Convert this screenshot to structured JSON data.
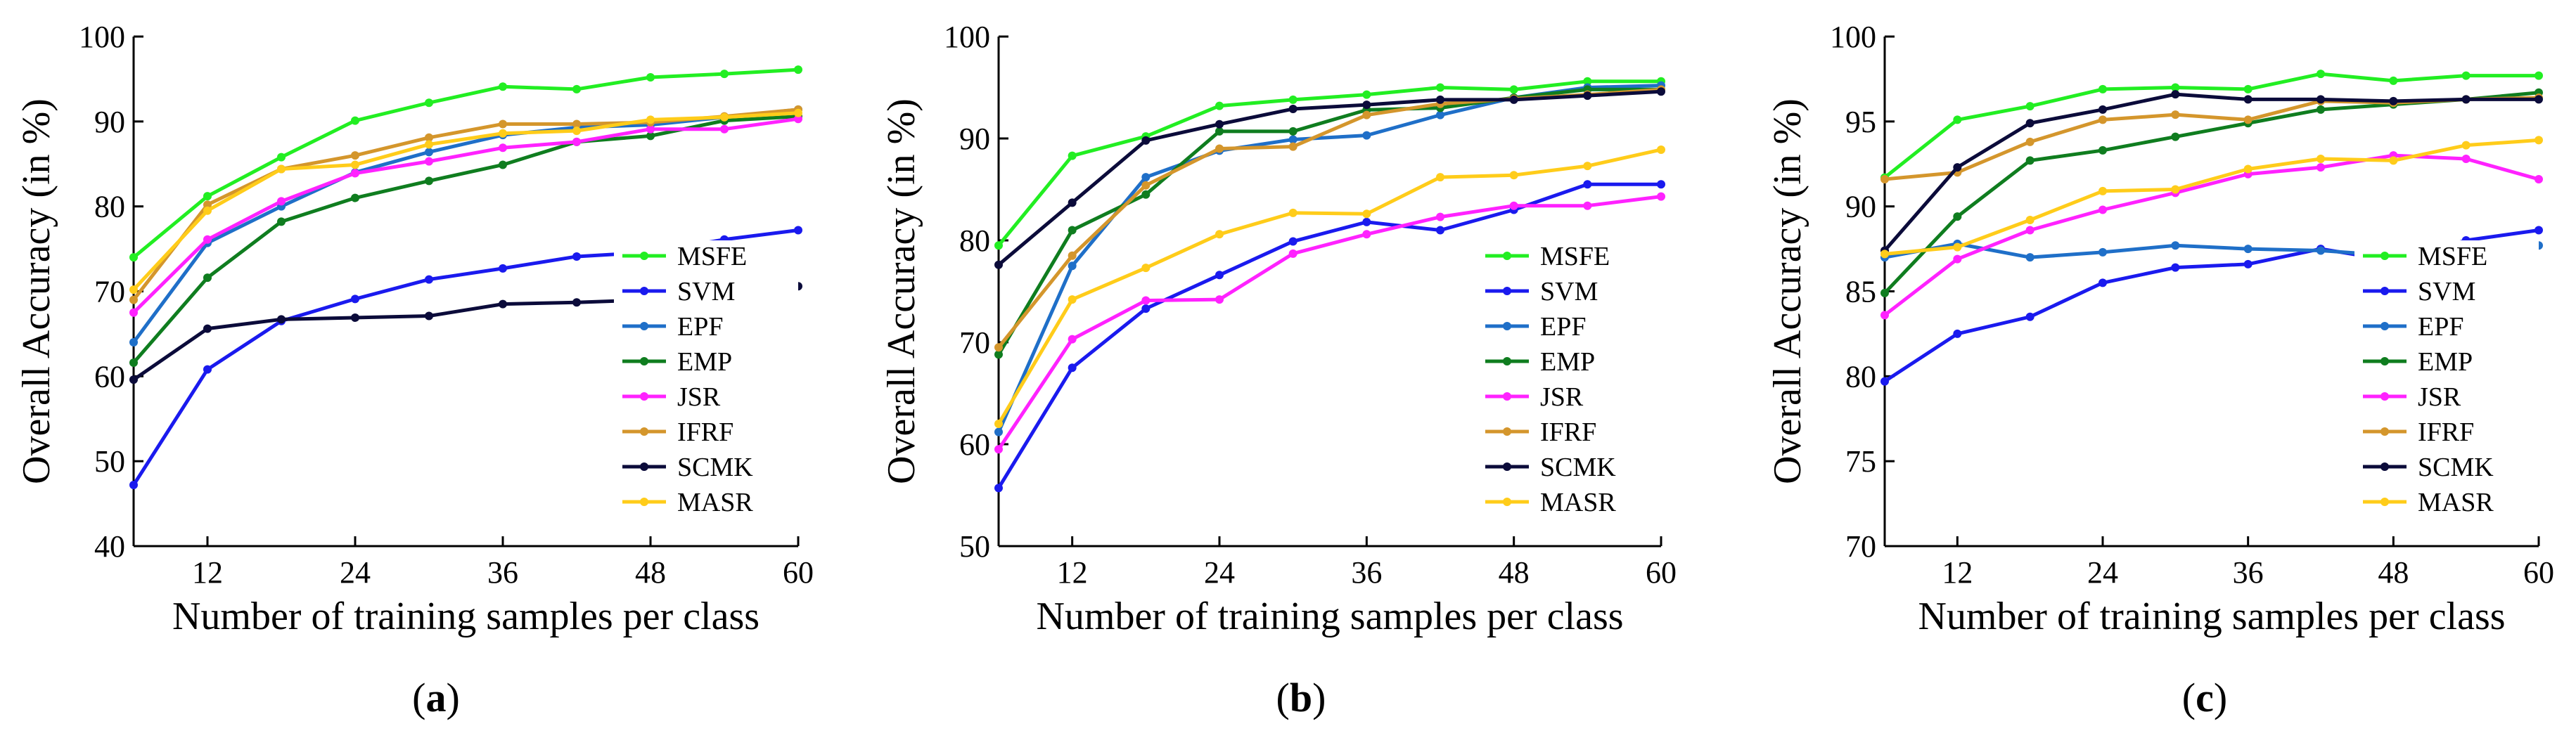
{
  "chart_data": [
    {
      "type": "line",
      "panel_label": "a",
      "xlabel": "Number of training samples per class",
      "ylabel": "Overall Accuracy (in %)",
      "xlim": [
        6,
        60
      ],
      "ylim": [
        40,
        100
      ],
      "xticks": [
        12,
        24,
        36,
        48,
        60
      ],
      "yticks": [
        40,
        50,
        60,
        70,
        80,
        90,
        100
      ],
      "grid": false,
      "legend_position": "lower-right",
      "x": [
        6,
        12,
        18,
        24,
        30,
        36,
        42,
        48,
        54,
        60
      ],
      "series": [
        {
          "name": "MSFE",
          "color": "#22ee22",
          "values": [
            74,
            81.2,
            85.8,
            90.1,
            92.2,
            94.1,
            93.8,
            95.2,
            95.6,
            96.1
          ]
        },
        {
          "name": "SVM",
          "color": "#1a1aee",
          "values": [
            47.2,
            60.8,
            66.5,
            69.1,
            71.4,
            72.7,
            74.1,
            74.6,
            76.1,
            77.2
          ]
        },
        {
          "name": "EPF",
          "color": "#1f6fc8",
          "values": [
            64,
            75.7,
            80,
            84,
            86.4,
            88.4,
            89.3,
            89.6,
            90.5,
            91.4
          ]
        },
        {
          "name": "EMP",
          "color": "#0f7d1f",
          "values": [
            61.6,
            71.6,
            78.2,
            81,
            83,
            84.9,
            87.6,
            88.3,
            90.1,
            90.6
          ]
        },
        {
          "name": "JSR",
          "color": "#ff22ff",
          "values": [
            67.5,
            76.1,
            80.6,
            83.9,
            85.3,
            86.9,
            87.6,
            89.1,
            89.1,
            90.3
          ]
        },
        {
          "name": "IFRF",
          "color": "#d4962c",
          "values": [
            69,
            80.2,
            84.4,
            86,
            88.1,
            89.7,
            89.7,
            89.9,
            90.6,
            91.4
          ]
        },
        {
          "name": "SCMK",
          "color": "#0b0b3a",
          "values": [
            59.6,
            65.6,
            66.7,
            66.9,
            67.1,
            68.5,
            68.7,
            69,
            69.9,
            70.6
          ]
        },
        {
          "name": "MASR",
          "color": "#ffcc1a",
          "values": [
            70.2,
            79.5,
            84.4,
            84.9,
            87.3,
            88.6,
            88.9,
            90.2,
            90.5,
            91
          ]
        }
      ]
    },
    {
      "type": "line",
      "panel_label": "b",
      "xlabel": "Number of training samples per class",
      "ylabel": "Overall Accuracy (in %)",
      "xlim": [
        6,
        60
      ],
      "ylim": [
        50,
        100
      ],
      "xticks": [
        12,
        24,
        36,
        48,
        60
      ],
      "yticks": [
        50,
        60,
        70,
        80,
        90,
        100
      ],
      "grid": false,
      "legend_position": "lower-right",
      "x": [
        6,
        12,
        18,
        24,
        30,
        36,
        42,
        48,
        54,
        60
      ],
      "series": [
        {
          "name": "MSFE",
          "color": "#22ee22",
          "values": [
            79.5,
            88.3,
            90.2,
            93.2,
            93.8,
            94.3,
            95,
            94.8,
            95.6,
            95.6
          ]
        },
        {
          "name": "SVM",
          "color": "#1a1aee",
          "values": [
            55.7,
            67.5,
            73.3,
            76.6,
            79.9,
            81.8,
            81,
            83,
            85.5,
            85.5
          ]
        },
        {
          "name": "EPF",
          "color": "#1f6fc8",
          "values": [
            61.2,
            77.5,
            86.2,
            88.8,
            89.9,
            90.3,
            92.3,
            94,
            95,
            95.2
          ]
        },
        {
          "name": "EMP",
          "color": "#0f7d1f",
          "values": [
            68.8,
            81,
            84.5,
            90.7,
            90.7,
            92.8,
            93,
            94,
            94.8,
            94.8
          ]
        },
        {
          "name": "JSR",
          "color": "#ff22ff",
          "values": [
            59.5,
            70.3,
            74.1,
            74.2,
            78.7,
            80.6,
            82.3,
            83.4,
            83.4,
            84.3
          ]
        },
        {
          "name": "IFRF",
          "color": "#d4962c",
          "values": [
            69.5,
            78.5,
            85.4,
            89,
            89.2,
            92.3,
            93.4,
            93.9,
            94.3,
            94.8
          ]
        },
        {
          "name": "SCMK",
          "color": "#0b0b3a",
          "values": [
            77.6,
            83.7,
            89.8,
            91.4,
            92.9,
            93.3,
            93.8,
            93.8,
            94.2,
            94.6
          ]
        },
        {
          "name": "MASR",
          "color": "#ffcc1a",
          "values": [
            62,
            74.2,
            77.3,
            80.6,
            82.7,
            82.6,
            86.2,
            86.4,
            87.3,
            88.9
          ]
        }
      ]
    },
    {
      "type": "line",
      "panel_label": "c",
      "xlabel": "Number of training samples per class",
      "ylabel": "Overall Accuracy (in %)",
      "xlim": [
        6,
        60
      ],
      "ylim": [
        70,
        100
      ],
      "xticks": [
        12,
        24,
        36,
        48,
        60
      ],
      "yticks": [
        70,
        75,
        80,
        85,
        90,
        95,
        100
      ],
      "grid": false,
      "legend_position": "lower-right",
      "x": [
        6,
        12,
        18,
        24,
        30,
        36,
        42,
        48,
        54,
        60
      ],
      "series": [
        {
          "name": "MSFE",
          "color": "#22ee22",
          "values": [
            91.7,
            95.1,
            95.9,
            96.9,
            97,
            96.9,
            97.8,
            97.4,
            97.7,
            97.7
          ]
        },
        {
          "name": "SVM",
          "color": "#1a1aee",
          "values": [
            79.7,
            82.5,
            83.5,
            85.5,
            86.4,
            86.6,
            87.5,
            86.8,
            88,
            88.6
          ]
        },
        {
          "name": "EPF",
          "color": "#1f6fc8",
          "values": [
            87,
            87.8,
            87,
            87.3,
            87.7,
            87.5,
            87.4,
            87.1,
            87.5,
            87.7
          ]
        },
        {
          "name": "EMP",
          "color": "#0f7d1f",
          "values": [
            84.9,
            89.4,
            92.7,
            93.3,
            94.1,
            94.9,
            95.7,
            96,
            96.3,
            96.7
          ]
        },
        {
          "name": "JSR",
          "color": "#ff22ff",
          "values": [
            83.6,
            86.9,
            88.6,
            89.8,
            90.8,
            91.9,
            92.3,
            93,
            92.8,
            91.6
          ]
        },
        {
          "name": "IFRF",
          "color": "#d4962c",
          "values": [
            91.6,
            92,
            93.8,
            95.1,
            95.4,
            95.1,
            96.2,
            96.1,
            96.3,
            96.4
          ]
        },
        {
          "name": "SCMK",
          "color": "#0b0b3a",
          "values": [
            87.4,
            92.3,
            94.9,
            95.7,
            96.6,
            96.3,
            96.3,
            96.2,
            96.3,
            96.3
          ]
        },
        {
          "name": "MASR",
          "color": "#ffcc1a",
          "values": [
            87.2,
            87.6,
            89.2,
            90.9,
            91,
            92.2,
            92.8,
            92.7,
            93.6,
            93.9
          ]
        }
      ]
    }
  ]
}
